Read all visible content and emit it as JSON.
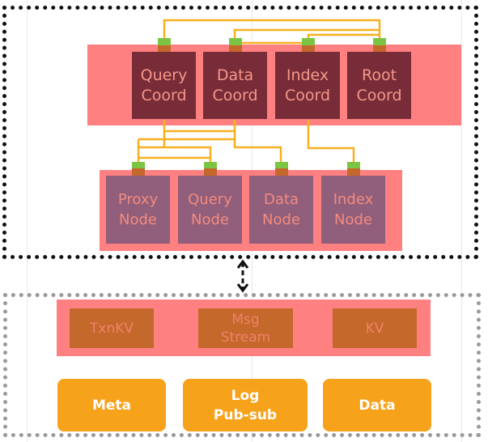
{
  "colors": {
    "connector": "#f7b021",
    "port_top": "#7cc544",
    "port_bottom": "#c4692b",
    "panel": "#ff8080",
    "coord": "#772c37",
    "node": "#915f7b",
    "storage": "#c4692b",
    "orange": "#f7a21b"
  },
  "coordinators": [
    {
      "label": "Query\nCoord"
    },
    {
      "label": "Data\nCoord"
    },
    {
      "label": "Index\nCoord"
    },
    {
      "label": "Root\nCoord"
    }
  ],
  "nodes": [
    {
      "label": "Proxy\nNode"
    },
    {
      "label": "Query\nNode"
    },
    {
      "label": "Data\nNode"
    },
    {
      "label": "Index\nNode"
    }
  ],
  "storage_services": [
    {
      "label": "TxnKV"
    },
    {
      "label": "Msg\nStream"
    },
    {
      "label": "KV"
    }
  ],
  "storage_types": [
    {
      "label": "Meta"
    },
    {
      "label": "Log\nPub-sub"
    },
    {
      "label": "Data"
    }
  ]
}
